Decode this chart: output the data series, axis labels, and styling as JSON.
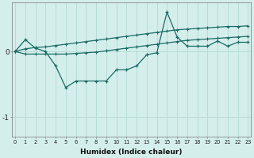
{
  "xlabel": "Humidex (Indice chaleur)",
  "background_color": "#d4eeec",
  "grid_color": "#b8dcd8",
  "line_color": "#1a6b64",
  "x": [
    0,
    1,
    2,
    3,
    4,
    5,
    6,
    7,
    8,
    9,
    10,
    11,
    12,
    13,
    14,
    15,
    16,
    17,
    18,
    19,
    20,
    21,
    22,
    23
  ],
  "y_main": [
    0.0,
    0.18,
    0.05,
    0.0,
    -0.22,
    -0.55,
    -0.45,
    -0.45,
    -0.45,
    -0.45,
    -0.28,
    -0.28,
    -0.22,
    -0.05,
    -0.02,
    0.6,
    0.22,
    0.08,
    0.08,
    0.08,
    0.16,
    0.08,
    0.14,
    0.14
  ],
  "y_upper": [
    0.0,
    0.04,
    0.06,
    0.07,
    0.09,
    0.11,
    0.13,
    0.15,
    0.17,
    0.19,
    0.21,
    0.23,
    0.25,
    0.27,
    0.29,
    0.31,
    0.33,
    0.34,
    0.35,
    0.36,
    0.37,
    0.38,
    0.38,
    0.39
  ],
  "y_lower": [
    0.0,
    -0.04,
    -0.04,
    -0.04,
    -0.04,
    -0.04,
    -0.03,
    -0.02,
    -0.01,
    0.01,
    0.03,
    0.05,
    0.07,
    0.09,
    0.11,
    0.13,
    0.15,
    0.17,
    0.18,
    0.19,
    0.2,
    0.21,
    0.22,
    0.23
  ],
  "ylim": [
    -1.3,
    0.75
  ],
  "yticks": [
    0,
    -1
  ],
  "xticks": [
    0,
    1,
    2,
    3,
    4,
    5,
    6,
    7,
    8,
    9,
    10,
    11,
    12,
    13,
    14,
    15,
    16,
    17,
    18,
    19,
    20,
    21,
    22,
    23
  ],
  "xlim": [
    -0.3,
    23.3
  ]
}
